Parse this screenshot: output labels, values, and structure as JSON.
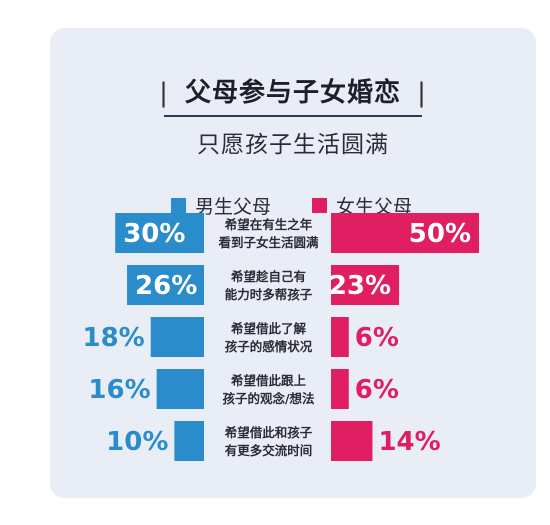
{
  "title": "父母参与子女婚恋",
  "title_separator": "|",
  "subtitle": "只愿孩子生活圆满",
  "colors": {
    "card_background": "#e9eef6",
    "male_parents": "#2b8ccb",
    "female_parents": "#df1f62",
    "label_text": "#2a2c36"
  },
  "legend": {
    "male": "男生父母",
    "female": "女生父母"
  },
  "chart_data": {
    "type": "bar",
    "layout": "back-to-back horizontal bars",
    "title": "父母参与子女婚恋",
    "subtitle": "只愿孩子生活圆满",
    "categories": [
      [
        "希望在有生之年",
        "看到子女生活圆满"
      ],
      [
        "希望趁自己有",
        "能力时多帮孩子"
      ],
      [
        "希望借此了解",
        "孩子的感情状况"
      ],
      [
        "希望借此跟上",
        "孩子的观念/想法"
      ],
      [
        "希望借此和孩子",
        "有更多交流时间"
      ]
    ],
    "series": [
      {
        "name": "男生父母",
        "values": [
          30,
          26,
          18,
          16,
          10
        ],
        "labels": [
          "30%",
          "26%",
          "18%",
          "16%",
          "10%"
        ]
      },
      {
        "name": "女生父母",
        "values": [
          50,
          23,
          6,
          6,
          14
        ],
        "labels": [
          "50%",
          "23%",
          "6%",
          "6%",
          "14%"
        ]
      }
    ],
    "unit": "%",
    "xlim": [
      0,
      50
    ]
  }
}
